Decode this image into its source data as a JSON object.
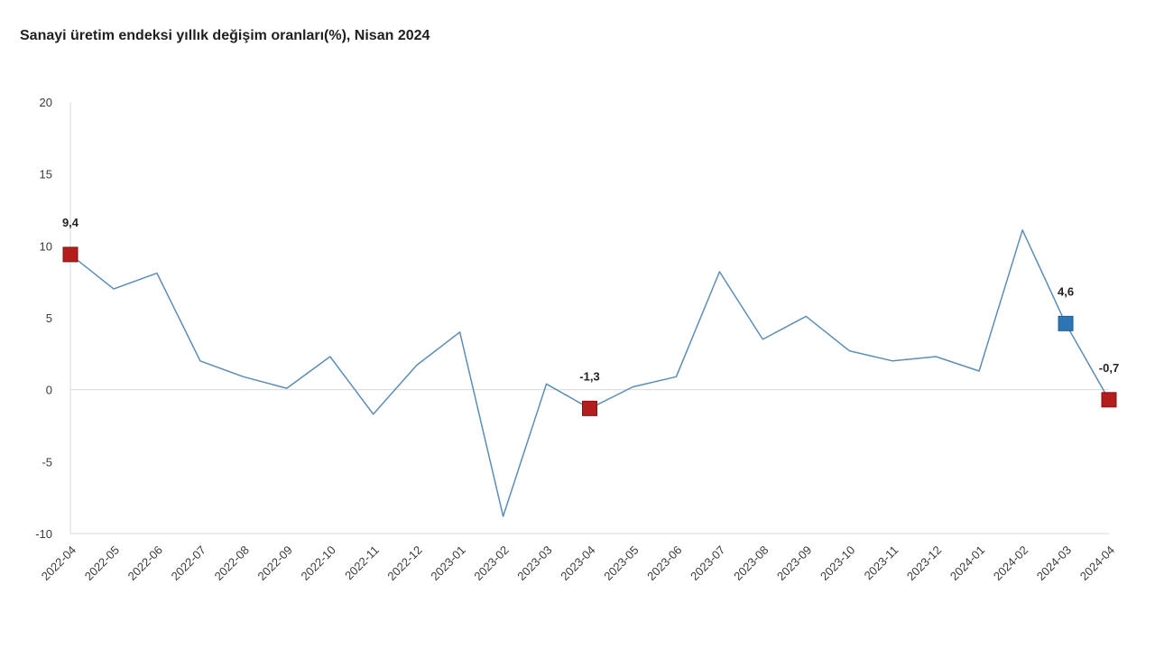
{
  "chart_data": {
    "type": "line",
    "title": "Sanayi üretim endeksi yıllık değişim oranları(%), Nisan 2024",
    "xlabel": "",
    "ylabel": "",
    "ylim": [
      -10,
      20
    ],
    "yticks": [
      20,
      15,
      10,
      5,
      0,
      -5,
      -10
    ],
    "grid": false,
    "zero_line": true,
    "legend": "none",
    "line_color": "#5b8db8",
    "categories": [
      "2022-04",
      "2022-05",
      "2022-06",
      "2022-07",
      "2022-08",
      "2022-09",
      "2022-10",
      "2022-11",
      "2022-12",
      "2023-01",
      "2023-02",
      "2023-03",
      "2023-04",
      "2023-05",
      "2023-06",
      "2023-07",
      "2023-08",
      "2023-09",
      "2023-10",
      "2023-11",
      "2023-12",
      "2024-01",
      "2024-02",
      "2024-03",
      "2024-04"
    ],
    "values": [
      9.4,
      7.0,
      8.1,
      2.0,
      0.9,
      0.1,
      2.3,
      -1.7,
      1.7,
      4.0,
      -8.8,
      0.4,
      -1.3,
      0.2,
      0.9,
      8.2,
      3.5,
      5.1,
      2.7,
      2.0,
      2.3,
      1.3,
      11.1,
      4.6,
      -0.7
    ],
    "highlights": [
      {
        "category": "2022-04",
        "value": 9.4,
        "label": "9,4",
        "color": "#b21d1d",
        "border": "#8a1212"
      },
      {
        "category": "2023-04",
        "value": -1.3,
        "label": "-1,3",
        "color": "#b21d1d",
        "border": "#8a1212"
      },
      {
        "category": "2024-03",
        "value": 4.6,
        "label": "4,6",
        "color": "#2e75b6",
        "border": "#1f5c93"
      },
      {
        "category": "2024-04",
        "value": -0.7,
        "label": "-0,7",
        "color": "#b21d1d",
        "border": "#8a1212"
      }
    ]
  }
}
